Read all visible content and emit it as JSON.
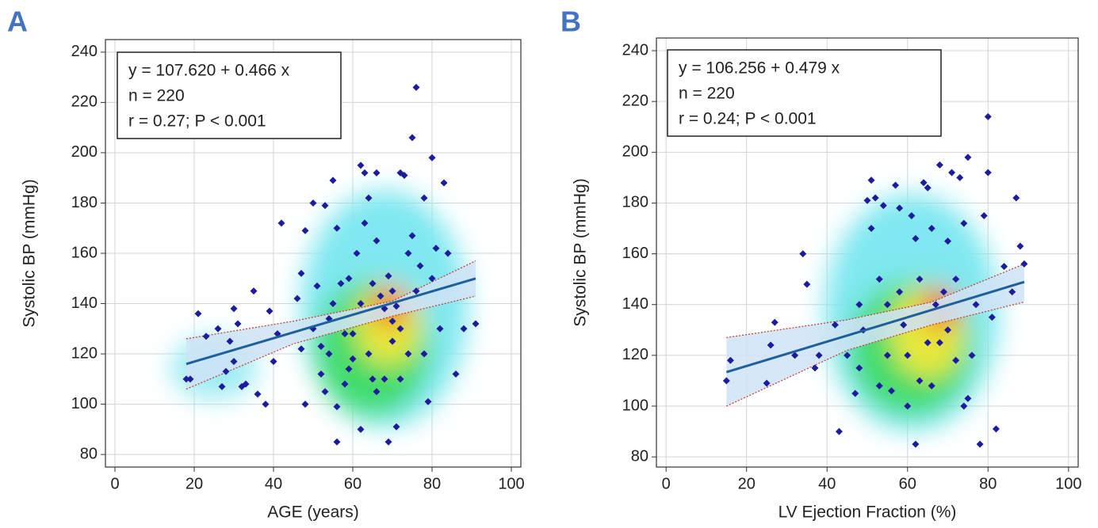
{
  "chart_data": [
    {
      "type": "scatter",
      "panel_label": "A",
      "annotation": [
        "y = 107.620  +  0.466  x",
        "n = 220",
        "r = 0.27; P < 0.001"
      ],
      "xlabel": "AGE (years)",
      "ylabel": "Systolic BP (mmHg)",
      "xlim": [
        -2.4,
        102.4
      ],
      "ylim": [
        75,
        245
      ],
      "xticks": [
        0,
        20,
        40,
        60,
        80,
        100
      ],
      "yticks": [
        80,
        100,
        120,
        140,
        160,
        180,
        200,
        220,
        240
      ],
      "grid": true,
      "color": "#1c1c9c",
      "x": [
        18,
        19,
        21,
        23,
        26,
        27,
        28,
        29,
        30,
        30,
        31,
        32,
        33,
        35,
        36,
        38,
        39,
        40,
        41,
        42,
        46,
        47,
        48,
        48,
        50,
        51,
        52,
        53,
        54,
        55,
        56,
        56,
        57,
        56,
        58,
        59,
        60,
        61,
        62,
        62,
        63,
        63,
        64,
        65,
        65,
        66,
        67,
        68,
        69,
        69,
        70,
        70,
        71,
        71,
        72,
        72,
        73,
        74,
        75,
        75,
        76,
        76,
        77,
        78,
        78,
        79,
        80,
        80,
        81,
        82,
        83,
        84,
        86,
        88,
        91,
        60,
        58,
        64,
        66,
        68,
        52,
        50,
        47,
        55,
        62,
        70,
        72,
        66,
        74,
        59,
        54,
        53
      ],
      "values": [
        110,
        110,
        136,
        127,
        130,
        107,
        113,
        125,
        138,
        117,
        132,
        107,
        108,
        145,
        104,
        100,
        137,
        117,
        128,
        172,
        142,
        152,
        169,
        100,
        180,
        147,
        123,
        179,
        134,
        189,
        170,
        99,
        148,
        85,
        128,
        114,
        128,
        160,
        195,
        90,
        192,
        172,
        182,
        148,
        110,
        192,
        143,
        138,
        151,
        85,
        145,
        125,
        91,
        139,
        130,
        192,
        191,
        160,
        167,
        206,
        226,
        145,
        155,
        182,
        120,
        101,
        198,
        150,
        162,
        130,
        188,
        160,
        112,
        130,
        132,
        118,
        108,
        120,
        105,
        110,
        112,
        130,
        122,
        140,
        140,
        133,
        110,
        165,
        120,
        150,
        120,
        105
      ],
      "fit": {
        "x": [
          18,
          91
        ],
        "values": [
          116,
          150
        ],
        "color": "#1f5f9a"
      },
      "band": {
        "x": [
          18,
          45,
          70,
          91
        ],
        "upper": [
          126,
          133,
          141,
          157
        ],
        "lower": [
          106,
          124,
          135,
          143
        ],
        "color": "#cfe3f5"
      }
    },
    {
      "type": "scatter",
      "panel_label": "B",
      "annotation": [
        "y = 106.256  +  0.479  x",
        "n = 220",
        "r = 0.24; P < 0.001"
      ],
      "xlabel": "LV Ejection Fraction (%)",
      "ylabel": "Systolic BP (mmHg)",
      "xlim": [
        -2.4,
        102.4
      ],
      "ylim": [
        76,
        245
      ],
      "xticks": [
        0,
        20,
        40,
        60,
        80,
        100
      ],
      "yticks": [
        80,
        100,
        120,
        140,
        160,
        180,
        200,
        220,
        240
      ],
      "grid": true,
      "color": "#1c1c9c",
      "x": [
        15,
        16,
        25,
        26,
        27,
        32,
        34,
        35,
        37,
        38,
        42,
        43,
        45,
        47,
        48,
        49,
        50,
        51,
        51,
        52,
        53,
        54,
        55,
        56,
        57,
        58,
        59,
        60,
        61,
        62,
        62,
        63,
        64,
        65,
        65,
        66,
        67,
        68,
        69,
        70,
        71,
        72,
        73,
        74,
        75,
        75,
        76,
        77,
        78,
        79,
        80,
        80,
        81,
        82,
        84,
        86,
        87,
        88,
        89,
        60,
        55,
        63,
        70,
        66,
        58,
        72,
        68,
        53,
        48,
        74
      ],
      "values": [
        110,
        118,
        109,
        124,
        133,
        120,
        160,
        148,
        115,
        120,
        132,
        90,
        120,
        105,
        140,
        130,
        181,
        189,
        170,
        182,
        150,
        179,
        120,
        106,
        187,
        178,
        132,
        100,
        175,
        166,
        85,
        150,
        188,
        186,
        125,
        170,
        140,
        195,
        145,
        165,
        192,
        150,
        190,
        172,
        198,
        103,
        120,
        140,
        85,
        175,
        214,
        192,
        135,
        91,
        155,
        145,
        182,
        163,
        156,
        120,
        140,
        110,
        130,
        108,
        145,
        118,
        125,
        108,
        115,
        100
      ],
      "fit": {
        "x": [
          15,
          89
        ],
        "values": [
          113.4,
          148.9
        ],
        "color": "#1f5f9a"
      },
      "band": {
        "x": [
          15,
          45,
          66,
          89
        ],
        "upper": [
          127,
          134,
          141,
          156
        ],
        "lower": [
          100,
          122,
          132,
          141
        ],
        "color": "#cfe3f5"
      }
    }
  ]
}
